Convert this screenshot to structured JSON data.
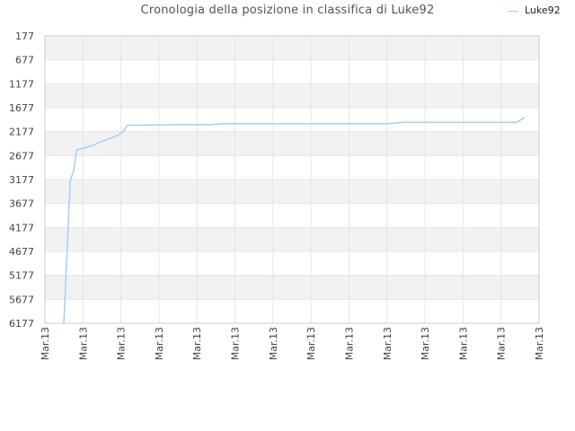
{
  "chart_data": {
    "type": "line",
    "title": "Cronologia della posizione in classifica di Luke92",
    "xlabel": "",
    "ylabel": "",
    "y_reversed": true,
    "ylim": [
      177,
      6177
    ],
    "y_ticks": [
      "177",
      "677",
      "1177",
      "1677",
      "2177",
      "2677",
      "3177",
      "3677",
      "4177",
      "4677",
      "5177",
      "5677",
      "6177"
    ],
    "x_ticks": [
      "Mar.13",
      "Mar.13",
      "Mar.13",
      "Mar.13",
      "Mar.13",
      "Mar.13",
      "Mar.13",
      "Mar.13",
      "Mar.13",
      "Mar.13",
      "Mar.13",
      "Mar.13",
      "Mar.13",
      "Mar.13"
    ],
    "grid": true,
    "legend_position": "top-right",
    "series": [
      {
        "name": "Luke92",
        "color": "#a6cef5",
        "x": [
          0,
          0.02,
          0.04,
          0.06,
          0.08,
          0.1,
          0.13,
          0.16,
          0.19,
          0.22,
          0.26,
          0.3,
          0.34,
          0.37,
          0.39,
          0.4,
          0.5,
          0.6,
          0.7,
          0.8,
          0.9,
          1.0,
          1.1,
          1.2,
          1.3,
          1.4,
          1.5,
          1.6,
          1.7,
          1.8,
          1.9,
          2.0,
          2.1,
          2.2,
          2.3,
          2.4,
          2.5,
          2.6,
          2.7,
          2.8,
          2.85
        ],
        "values": [
          6177,
          4700,
          3200,
          3000,
          2560,
          2540,
          2510,
          2480,
          2450,
          2400,
          2350,
          2300,
          2240,
          2170,
          2050,
          2040,
          2040,
          2035,
          2030,
          2030,
          2030,
          2010,
          2010,
          2010,
          2010,
          2010,
          2010,
          2010,
          2010,
          2010,
          2010,
          2010,
          1980,
          1980,
          1980,
          1980,
          1980,
          1980,
          1980,
          1980,
          1880
        ]
      }
    ]
  },
  "colors": {
    "band": "#f2f2f2",
    "grid": "#e6e6e6",
    "axis": "#cccccc",
    "line": "#a6cef5"
  }
}
